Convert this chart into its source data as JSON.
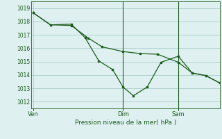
{
  "background_color": "#dff0f0",
  "grid_color": "#aacccc",
  "line_color": "#1a5c1a",
  "marker_color": "#1a5c1a",
  "xlabel": "Pression niveau de la mer( hPa )",
  "ylim": [
    1011.5,
    1019.5
  ],
  "yticks": [
    1012,
    1013,
    1014,
    1015,
    1016,
    1017,
    1018,
    1019
  ],
  "day_labels": [
    "Ven",
    "Dim",
    "Sam"
  ],
  "day_positions": [
    0,
    13,
    21
  ],
  "xlim": [
    -0.3,
    27
  ],
  "line1_x": [
    0,
    2.5,
    5.5,
    8,
    10,
    13,
    15.5,
    18,
    21,
    23,
    25,
    27
  ],
  "line1_y": [
    1018.65,
    1017.75,
    1017.7,
    1016.75,
    1016.1,
    1015.75,
    1015.6,
    1015.55,
    1014.95,
    1014.15,
    1013.95,
    1013.4
  ],
  "line2_x": [
    0,
    2.5,
    5.5,
    7.5,
    9.5,
    11.5,
    13,
    14.5,
    16.5,
    18.5,
    21,
    23,
    25,
    27
  ],
  "line2_y": [
    1018.65,
    1017.75,
    1017.8,
    1016.8,
    1015.05,
    1014.4,
    1013.1,
    1012.45,
    1013.1,
    1014.95,
    1015.4,
    1014.15,
    1013.95,
    1013.4
  ],
  "vline_positions": [
    13,
    21
  ],
  "figsize": [
    3.2,
    2.0
  ],
  "dpi": 100
}
